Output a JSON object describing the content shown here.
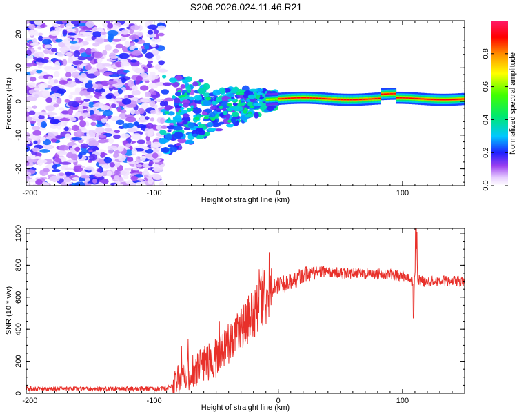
{
  "title": "S206.2026.024.11.46.R21",
  "chart_data": [
    {
      "type": "heatmap",
      "xlabel": "Height of straight line (km)",
      "ylabel": "Frequency (Hz)",
      "xlim": [
        -203,
        150
      ],
      "ylim": [
        -25,
        24
      ],
      "xticks": [
        -200,
        -100,
        0,
        100
      ],
      "yticks": [
        -20,
        -10,
        0,
        10,
        20
      ],
      "description_regions": [
        {
          "x_range": [
            -203,
            -93
          ],
          "frequency_range": [
            -25,
            24
          ],
          "amplitude": [
            0.0,
            0.3
          ]
        },
        {
          "x_range": [
            -93,
            0
          ],
          "frequency_range": [
            -14,
            5
          ],
          "amplitude": [
            0.1,
            0.45
          ]
        },
        {
          "x_range": [
            0,
            150
          ],
          "frequency_range": [
            0,
            3
          ],
          "amplitude": [
            0.5,
            1.0
          ]
        }
      ],
      "colorbar": {
        "label": "Normalized spectral amplitude",
        "range": [
          0,
          1
        ],
        "ticks": [
          "0.0",
          "0.2",
          "0.4",
          "0.6",
          "0.8"
        ]
      }
    },
    {
      "type": "line",
      "xlabel": "Height of straight line (km)",
      "ylabel": "SNR (10 * v/v)",
      "xlim": [
        -203,
        150
      ],
      "ylim": [
        0,
        1030
      ],
      "xticks": [
        -200,
        -100,
        0,
        100
      ],
      "yticks": [
        0,
        200,
        400,
        600,
        800,
        1000
      ],
      "color": "#e8302a",
      "series": [
        {
          "name": "SNR",
          "x": [
            -203,
            -180,
            -160,
            -140,
            -120,
            -100,
            -90,
            -85,
            -80,
            -75,
            -70,
            -65,
            -60,
            -55,
            -50,
            -45,
            -40,
            -35,
            -30,
            -25,
            -20,
            -17,
            -15,
            -12,
            -10,
            -5,
            0,
            5,
            10,
            15,
            20,
            25,
            30,
            40,
            50,
            60,
            70,
            80,
            90,
            100,
            105,
            108,
            110,
            112,
            115,
            120,
            130,
            140,
            150
          ],
          "y": [
            28,
            28,
            28,
            28,
            28,
            28,
            30,
            50,
            100,
            100,
            120,
            150,
            180,
            200,
            220,
            260,
            300,
            360,
            400,
            450,
            500,
            520,
            560,
            600,
            580,
            650,
            670,
            690,
            700,
            720,
            740,
            750,
            760,
            760,
            750,
            750,
            750,
            745,
            740,
            735,
            730,
            700,
            750,
            720,
            700,
            700,
            700,
            700,
            700
          ]
        }
      ]
    }
  ]
}
